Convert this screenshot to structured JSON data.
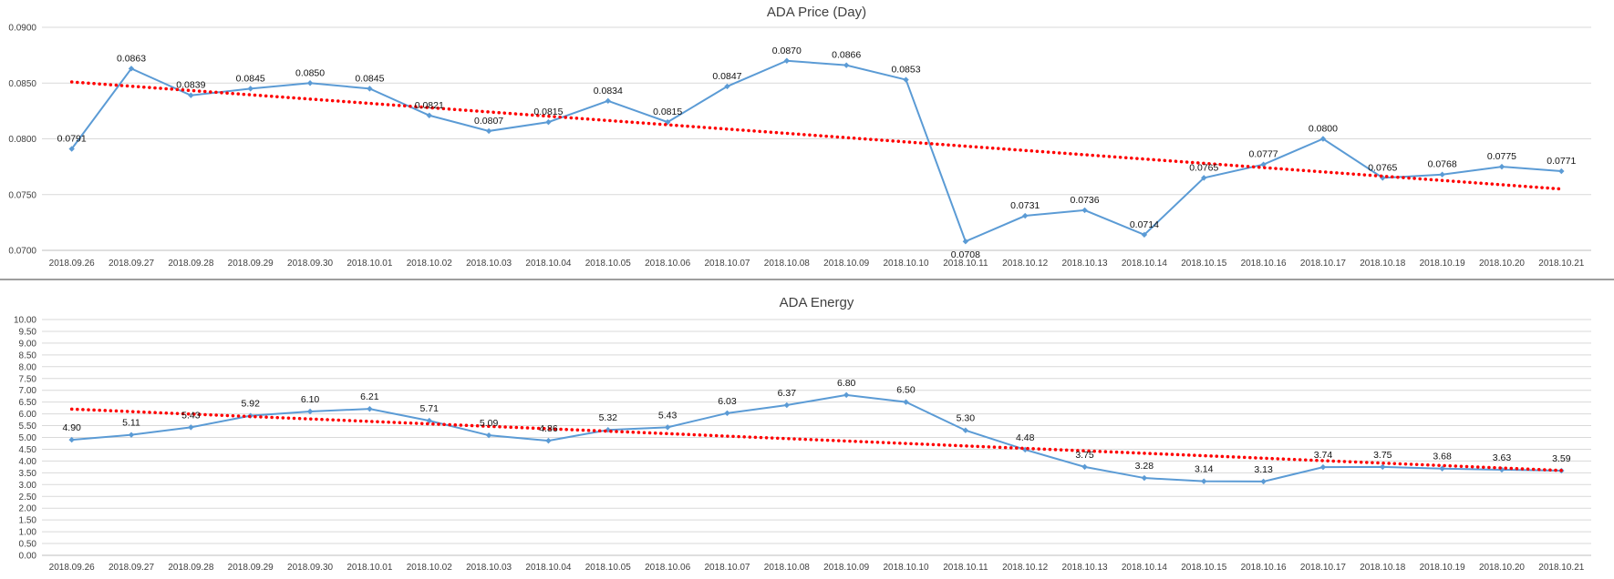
{
  "colors": {
    "series": "#5b9bd5",
    "trend": "#ff0000",
    "grid": "#d9d9d9",
    "axis": "#bfbfbf",
    "text": "#404040"
  },
  "chart_data": [
    {
      "type": "line",
      "title": "ADA Price (Day)",
      "xlabel": "",
      "ylabel": "",
      "categories": [
        "2018.09.26",
        "2018.09.27",
        "2018.09.28",
        "2018.09.29",
        "2018.09.30",
        "2018.10.01",
        "2018.10.02",
        "2018.10.03",
        "2018.10.04",
        "2018.10.05",
        "2018.10.06",
        "2018.10.07",
        "2018.10.08",
        "2018.10.09",
        "2018.10.10",
        "2018.10.11",
        "2018.10.12",
        "2018.10.13",
        "2018.10.14",
        "2018.10.15",
        "2018.10.16",
        "2018.10.17",
        "2018.10.18",
        "2018.10.19",
        "2018.10.20",
        "2018.10.21"
      ],
      "series": [
        {
          "values": [
            0.0791,
            0.0863,
            0.0839,
            0.0845,
            0.085,
            0.0845,
            0.0821,
            0.0807,
            0.0815,
            0.0834,
            0.0815,
            0.0847,
            0.087,
            0.0866,
            0.0853,
            0.0708,
            0.0731,
            0.0736,
            0.0714,
            0.0765,
            0.0777,
            0.08,
            0.0765,
            0.0768,
            0.0775,
            0.0771
          ],
          "labels": [
            "0.0791",
            "0.0863",
            "0.0839",
            "0.0845",
            "0.0850",
            "0.0845",
            "0.0821",
            "0.0807",
            "0.0815",
            "0.0834",
            "0.0815",
            "0.0847",
            "0.0870",
            "0.0866",
            "0.0853",
            "0.0708",
            "0.0731",
            "0.0736",
            "0.0714",
            "0.0765",
            "0.0777",
            "0.0800",
            "0.0765",
            "0.0768",
            "0.0775",
            "0.0771"
          ]
        }
      ],
      "trendline": {
        "type": "linear",
        "start": 0.0851,
        "end": 0.0755
      },
      "ylim": [
        0.07,
        0.09
      ],
      "yticks": [
        "0.0700",
        "0.0750",
        "0.0800",
        "0.0850",
        "0.0900"
      ],
      "ytick_values": [
        0.07,
        0.075,
        0.08,
        0.085,
        0.09
      ],
      "grid": true,
      "legend": "none"
    },
    {
      "type": "line",
      "title": "ADA Energy",
      "xlabel": "",
      "ylabel": "",
      "categories": [
        "2018.09.26",
        "2018.09.27",
        "2018.09.28",
        "2018.09.29",
        "2018.09.30",
        "2018.10.01",
        "2018.10.02",
        "2018.10.03",
        "2018.10.04",
        "2018.10.05",
        "2018.10.06",
        "2018.10.07",
        "2018.10.08",
        "2018.10.09",
        "2018.10.10",
        "2018.10.11",
        "2018.10.12",
        "2018.10.13",
        "2018.10.14",
        "2018.10.15",
        "2018.10.16",
        "2018.10.17",
        "2018.10.18",
        "2018.10.19",
        "2018.10.20",
        "2018.10.21"
      ],
      "series": [
        {
          "values": [
            4.9,
            5.11,
            5.43,
            5.92,
            6.1,
            6.21,
            5.71,
            5.09,
            4.86,
            5.32,
            5.43,
            6.03,
            6.37,
            6.8,
            6.5,
            5.3,
            4.48,
            3.75,
            3.28,
            3.14,
            3.13,
            3.74,
            3.75,
            3.68,
            3.63,
            3.59
          ],
          "labels": [
            "4.90",
            "5.11",
            "5.43",
            "5.92",
            "6.10",
            "6.21",
            "5.71",
            "5.09",
            "4.86",
            "5.32",
            "5.43",
            "6.03",
            "6.37",
            "6.80",
            "6.50",
            "5.30",
            "4.48",
            "3.75",
            "3.28",
            "3.14",
            "3.13",
            "3.74",
            "3.75",
            "3.68",
            "3.63",
            "3.59"
          ]
        }
      ],
      "trendline": {
        "type": "linear",
        "start": 6.2,
        "end": 3.6
      },
      "ylim": [
        0,
        10
      ],
      "yticks": [
        "0.00",
        "0.50",
        "1.00",
        "1.50",
        "2.00",
        "2.50",
        "3.00",
        "3.50",
        "4.00",
        "4.50",
        "5.00",
        "5.50",
        "6.00",
        "6.50",
        "7.00",
        "7.50",
        "8.00",
        "8.50",
        "9.00",
        "9.50",
        "10.00"
      ],
      "ytick_values": [
        0,
        0.5,
        1,
        1.5,
        2,
        2.5,
        3,
        3.5,
        4,
        4.5,
        5,
        5.5,
        6,
        6.5,
        7,
        7.5,
        8,
        8.5,
        9,
        9.5,
        10
      ],
      "grid": true,
      "legend": "none"
    }
  ]
}
